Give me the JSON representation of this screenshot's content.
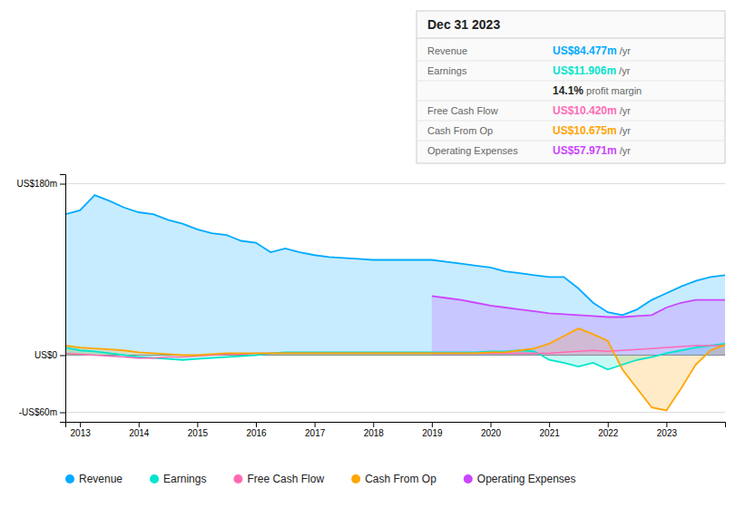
{
  "chart_data": {
    "type": "area",
    "title": "Dec 31 2023",
    "annotations": [
      {
        "label": "Revenue",
        "text": "US$84.477m",
        "suffix": " /yr",
        "color": "#00aaff"
      },
      {
        "label": "Earnings",
        "text": "US$11.906m",
        "suffix": " /yr",
        "color": "#00e5cc"
      },
      {
        "text": "14.1%",
        "suffix": " profit margin"
      },
      {
        "label": "Free Cash Flow",
        "text": "US$10.420m",
        "suffix": " /yr",
        "color": "#ff69b4"
      },
      {
        "label": "Cash From Op",
        "text": "US$10.675m",
        "suffix": " /yr",
        "color": "#ffa500"
      },
      {
        "label": "Operating Expenses",
        "text": "US$57.971m",
        "suffix": " /yr",
        "color": "#cc44ff"
      }
    ],
    "x": [
      2012.75,
      2013.0,
      2013.25,
      2013.5,
      2013.75,
      2014.0,
      2014.25,
      2014.5,
      2014.75,
      2015.0,
      2015.25,
      2015.5,
      2015.75,
      2016.0,
      2016.25,
      2016.5,
      2016.75,
      2017.0,
      2017.25,
      2017.5,
      2017.75,
      2018.0,
      2018.25,
      2018.5,
      2018.75,
      2019.0,
      2019.25,
      2019.5,
      2019.75,
      2020.0,
      2020.25,
      2020.5,
      2020.75,
      2021.0,
      2021.25,
      2021.5,
      2021.75,
      2022.0,
      2022.25,
      2022.5,
      2022.75,
      2023.0,
      2023.25,
      2023.5,
      2023.75,
      2024.0
    ],
    "series": [
      {
        "name": "Revenue",
        "color": "#00aaff",
        "type": "area",
        "values": [
          148,
          152,
          168,
          162,
          155,
          150,
          148,
          142,
          138,
          132,
          128,
          126,
          120,
          118,
          108,
          112,
          108,
          105,
          103,
          102,
          101,
          100,
          100,
          100,
          100,
          100,
          98,
          96,
          94,
          92,
          88,
          86,
          84,
          82,
          82,
          70,
          55,
          45,
          42,
          48,
          58,
          65,
          72,
          78,
          82,
          84
        ]
      },
      {
        "name": "Earnings",
        "color": "#00e5cc",
        "type": "area",
        "values": [
          8,
          5,
          4,
          2,
          0,
          -2,
          -3,
          -4,
          -5,
          -4,
          -3,
          -2,
          -1,
          0,
          2,
          3,
          3,
          3,
          3,
          3,
          3,
          3,
          3,
          3,
          3,
          3,
          3,
          3,
          3,
          4,
          4,
          5,
          4,
          -5,
          -8,
          -12,
          -8,
          -15,
          -10,
          -5,
          -2,
          2,
          5,
          8,
          10,
          12
        ]
      },
      {
        "name": "Free Cash Flow",
        "color": "#ff69b4",
        "type": "line",
        "values": [
          2,
          1,
          0,
          -1,
          -2,
          -3,
          -3,
          -2,
          -2,
          -1,
          0,
          1,
          1,
          2,
          2,
          2,
          2,
          2,
          2,
          2,
          2,
          2,
          2,
          2,
          2,
          2,
          2,
          2,
          2,
          2,
          2,
          2,
          2,
          2,
          3,
          4,
          5,
          4,
          5,
          6,
          7,
          8,
          9,
          10,
          10,
          10
        ]
      },
      {
        "name": "Cash From Op",
        "color": "#ffa500",
        "type": "area",
        "values": [
          10,
          8,
          7,
          6,
          5,
          3,
          2,
          1,
          0,
          0,
          1,
          2,
          2,
          2,
          2,
          2,
          2,
          2,
          2,
          2,
          2,
          2,
          2,
          2,
          2,
          2,
          2,
          2,
          2,
          3,
          3,
          5,
          7,
          12,
          20,
          28,
          22,
          15,
          -15,
          -35,
          -55,
          -58,
          -35,
          -10,
          5,
          11
        ]
      },
      {
        "name": "Operating Expenses",
        "color": "#cc44ff",
        "type": "area",
        "values": [
          null,
          null,
          null,
          null,
          null,
          null,
          null,
          null,
          null,
          null,
          null,
          null,
          null,
          null,
          null,
          null,
          null,
          null,
          null,
          null,
          null,
          null,
          null,
          null,
          null,
          62,
          60,
          58,
          55,
          52,
          50,
          48,
          46,
          44,
          43,
          42,
          41,
          40,
          40,
          41,
          42,
          50,
          55,
          58,
          58,
          58
        ]
      }
    ],
    "xlim": [
      2012.75,
      2024.0
    ],
    "xticks": [
      2013,
      2014,
      2015,
      2016,
      2017,
      2018,
      2019,
      2020,
      2021,
      2022,
      2023
    ],
    "ylim": [
      -70,
      190
    ],
    "yticks": [
      {
        "value": -60,
        "label": "-US$60m"
      },
      {
        "value": 0,
        "label": "US$0"
      },
      {
        "value": 180,
        "label": "US$180m"
      }
    ],
    "grid": true,
    "legend": "bottom"
  }
}
